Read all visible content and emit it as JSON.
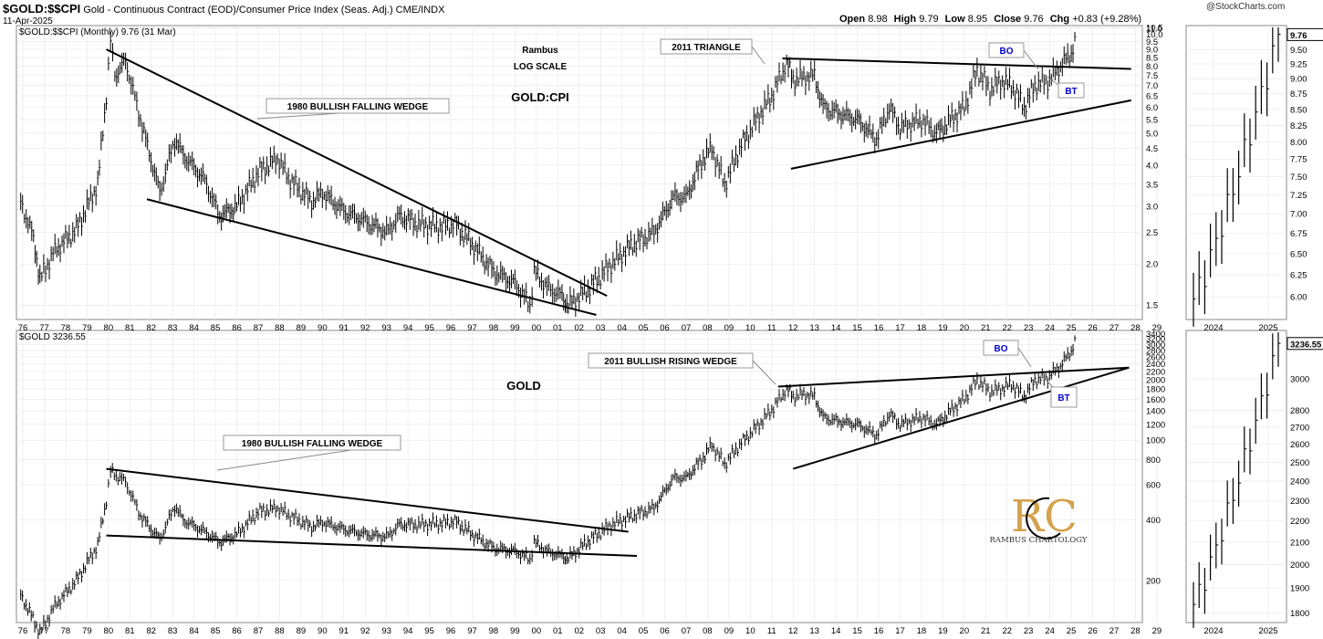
{
  "header": {
    "symbol": "$GOLD:$$CPI",
    "description": "Gold - Continuous Contract (EOD)/Consumer Price Index (Seas. Adj.) CME/INDX",
    "date": "11-Apr-2025",
    "open_label": "Open",
    "open": "8.98",
    "high_label": "High",
    "high": "9.79",
    "low_label": "Low",
    "low": "8.95",
    "close_label": "Close",
    "close": "9.76",
    "chg_label": "Chg",
    "chg": "+0.83 (+9.28%)",
    "provider": "@StockCharts.com"
  },
  "chart_data": [
    {
      "type": "ohlc",
      "panel": "top",
      "series_label": "$GOLD:$$CPI (Monthly) 9.76 (31 Mar)",
      "scale": "log",
      "ylim": [
        1.4,
        10.5
      ],
      "y_ticks": [
        "1.5",
        "2.0",
        "2.5",
        "3.0",
        "3.5",
        "4.0",
        "4.5",
        "5.0",
        "5.5",
        "6.0",
        "6.5",
        "7.0",
        "7.5",
        "8.0",
        "8.5",
        "9.0",
        "9.5",
        "10.0",
        "10.5",
        "11.0"
      ],
      "x_ticks": [
        "76",
        "77",
        "78",
        "79",
        "80",
        "81",
        "82",
        "83",
        "84",
        "85",
        "86",
        "87",
        "88",
        "89",
        "90",
        "91",
        "92",
        "93",
        "94",
        "95",
        "96",
        "97",
        "98",
        "99",
        "00",
        "01",
        "02",
        "03",
        "04",
        "05",
        "06",
        "07",
        "08",
        "09",
        "10",
        "11",
        "12",
        "13",
        "14",
        "15",
        "16",
        "17",
        "18",
        "19",
        "20",
        "21",
        "22",
        "23",
        "24",
        "25",
        "26",
        "27",
        "28",
        "29"
      ],
      "series_points": [
        [
          1975.9,
          3.1
        ],
        [
          1976.5,
          2.4
        ],
        [
          1976.8,
          1.8
        ],
        [
          1977.5,
          2.2
        ],
        [
          1978.5,
          2.55
        ],
        [
          1979.5,
          3.5
        ],
        [
          1979.9,
          6.5
        ],
        [
          1980.1,
          9.6
        ],
        [
          1980.3,
          7.5
        ],
        [
          1980.8,
          8.3
        ],
        [
          1981.5,
          5.5
        ],
        [
          1982.4,
          3.3
        ],
        [
          1983.1,
          4.8
        ],
        [
          1983.5,
          4.3
        ],
        [
          1984.5,
          3.6
        ],
        [
          1985.2,
          2.8
        ],
        [
          1986.0,
          3.0
        ],
        [
          1987.0,
          3.8
        ],
        [
          1987.9,
          4.2
        ],
        [
          1988.5,
          3.6
        ],
        [
          1989.5,
          3.1
        ],
        [
          1990.0,
          3.3
        ],
        [
          1991.0,
          2.9
        ],
        [
          1992.0,
          2.7
        ],
        [
          1993.0,
          2.5
        ],
        [
          1993.6,
          2.8
        ],
        [
          1994.5,
          2.65
        ],
        [
          1995.5,
          2.6
        ],
        [
          1996.2,
          2.65
        ],
        [
          1997.0,
          2.3
        ],
        [
          1998.0,
          1.9
        ],
        [
          1999.0,
          1.75
        ],
        [
          1999.7,
          1.5
        ],
        [
          1999.9,
          1.9
        ],
        [
          2000.5,
          1.7
        ],
        [
          2001.2,
          1.6
        ],
        [
          2001.5,
          1.5
        ],
        [
          2002.5,
          1.7
        ],
        [
          2003.5,
          2.0
        ],
        [
          2004.5,
          2.3
        ],
        [
          2005.5,
          2.5
        ],
        [
          2006.4,
          3.2
        ],
        [
          2007.0,
          3.2
        ],
        [
          2007.8,
          4.2
        ],
        [
          2008.2,
          4.5
        ],
        [
          2008.8,
          3.5
        ],
        [
          2009.5,
          4.5
        ],
        [
          2010.5,
          5.8
        ],
        [
          2011.0,
          6.5
        ],
        [
          2011.7,
          8.2
        ],
        [
          2012.0,
          7.3
        ],
        [
          2012.5,
          7.4
        ],
        [
          2013.0,
          7.5
        ],
        [
          2013.4,
          6.0
        ],
        [
          2014.0,
          5.8
        ],
        [
          2015.0,
          5.5
        ],
        [
          2015.9,
          4.8
        ],
        [
          2016.5,
          6.0
        ],
        [
          2017.0,
          5.2
        ],
        [
          2018.0,
          5.5
        ],
        [
          2018.7,
          5.0
        ],
        [
          2019.5,
          5.6
        ],
        [
          2020.0,
          6.0
        ],
        [
          2020.6,
          7.8
        ],
        [
          2021.2,
          6.8
        ],
        [
          2021.7,
          7.2
        ],
        [
          2022.2,
          7.0
        ],
        [
          2022.8,
          6.0
        ],
        [
          2023.3,
          7.0
        ],
        [
          2023.9,
          7.2
        ],
        [
          2024.5,
          8.0
        ],
        [
          2025.0,
          8.8
        ],
        [
          2025.25,
          9.76
        ]
      ],
      "annotations": [
        "Rambus",
        "LOG SCALE",
        "GOLD:CPI",
        "1980 BULLISH FALLING WEDGE",
        "2011 TRIANGLE",
        "BO",
        "BT"
      ],
      "trendlines": [
        {
          "from": [
            1979.9,
            9.0
          ],
          "to": [
            2003.3,
            1.6
          ]
        },
        {
          "from": [
            1981.8,
            3.15
          ],
          "to": [
            2002.8,
            1.4
          ]
        },
        {
          "from": [
            2011.5,
            8.45
          ],
          "to": [
            2027.8,
            7.85
          ]
        },
        {
          "from": [
            2011.9,
            3.9
          ],
          "to": [
            2027.8,
            6.3
          ]
        }
      ]
    },
    {
      "type": "ohlc",
      "panel": "top-inset",
      "scale": "log",
      "ylim": [
        5.8,
        9.9
      ],
      "y_ticks": [
        "6.00",
        "6.25",
        "6.50",
        "6.75",
        "7.00",
        "7.25",
        "7.50",
        "7.75",
        "8.00",
        "8.25",
        "8.50",
        "8.75",
        "9.00",
        "9.25",
        "9.50"
      ],
      "x_ticks": [
        "2024",
        "2025"
      ],
      "last_value": "9.76"
    },
    {
      "type": "ohlc",
      "panel": "bottom",
      "series_label": "$GOLD 3236.55",
      "scale": "log",
      "ylim": [
        130,
        3450
      ],
      "y_ticks": [
        "200",
        "400",
        "600",
        "800",
        "1000",
        "1200",
        "1400",
        "1600",
        "1800",
        "2000",
        "2200",
        "2400",
        "2600",
        "2800",
        "3000",
        "3200",
        "3400"
      ],
      "x_ticks": [
        "76",
        "77",
        "78",
        "79",
        "80",
        "81",
        "82",
        "83",
        "84",
        "85",
        "86",
        "87",
        "88",
        "89",
        "90",
        "91",
        "92",
        "93",
        "94",
        "95",
        "96",
        "97",
        "98",
        "99",
        "00",
        "01",
        "02",
        "03",
        "04",
        "05",
        "06",
        "07",
        "08",
        "09",
        "10",
        "11",
        "12",
        "13",
        "14",
        "15",
        "16",
        "17",
        "18",
        "19",
        "20",
        "21",
        "22",
        "23",
        "24",
        "25",
        "26",
        "27",
        "28",
        "29"
      ],
      "series_points": [
        [
          1975.9,
          170
        ],
        [
          1976.8,
          110
        ],
        [
          1977.5,
          150
        ],
        [
          1978.5,
          200
        ],
        [
          1979.5,
          300
        ],
        [
          1979.9,
          500
        ],
        [
          1980.1,
          700
        ],
        [
          1980.8,
          620
        ],
        [
          1981.5,
          420
        ],
        [
          1982.4,
          320
        ],
        [
          1983.1,
          470
        ],
        [
          1983.5,
          400
        ],
        [
          1984.5,
          350
        ],
        [
          1985.2,
          310
        ],
        [
          1986.0,
          340
        ],
        [
          1987.0,
          440
        ],
        [
          1987.9,
          460
        ],
        [
          1988.5,
          420
        ],
        [
          1989.5,
          370
        ],
        [
          1990.0,
          390
        ],
        [
          1991.0,
          360
        ],
        [
          1992.0,
          340
        ],
        [
          1993.0,
          330
        ],
        [
          1993.6,
          380
        ],
        [
          1994.5,
          380
        ],
        [
          1995.5,
          385
        ],
        [
          1996.2,
          395
        ],
        [
          1997.0,
          340
        ],
        [
          1998.0,
          290
        ],
        [
          1999.0,
          280
        ],
        [
          1999.7,
          255
        ],
        [
          1999.9,
          310
        ],
        [
          2000.5,
          280
        ],
        [
          2001.2,
          265
        ],
        [
          2001.5,
          258
        ],
        [
          2002.5,
          320
        ],
        [
          2003.5,
          380
        ],
        [
          2004.5,
          420
        ],
        [
          2005.5,
          460
        ],
        [
          2006.4,
          650
        ],
        [
          2007.0,
          650
        ],
        [
          2007.8,
          820
        ],
        [
          2008.2,
          950
        ],
        [
          2008.8,
          760
        ],
        [
          2009.5,
          950
        ],
        [
          2010.5,
          1230
        ],
        [
          2011.0,
          1420
        ],
        [
          2011.7,
          1800
        ],
        [
          2012.0,
          1650
        ],
        [
          2012.5,
          1700
        ],
        [
          2013.0,
          1650
        ],
        [
          2013.4,
          1300
        ],
        [
          2014.0,
          1250
        ],
        [
          2015.0,
          1200
        ],
        [
          2015.9,
          1060
        ],
        [
          2016.5,
          1350
        ],
        [
          2017.0,
          1200
        ],
        [
          2018.0,
          1300
        ],
        [
          2018.7,
          1200
        ],
        [
          2019.5,
          1450
        ],
        [
          2020.0,
          1600
        ],
        [
          2020.6,
          2000
        ],
        [
          2021.2,
          1750
        ],
        [
          2021.7,
          1800
        ],
        [
          2022.2,
          1900
        ],
        [
          2022.8,
          1650
        ],
        [
          2023.3,
          2000
        ],
        [
          2023.9,
          2050
        ],
        [
          2024.5,
          2350
        ],
        [
          2025.0,
          2800
        ],
        [
          2025.25,
          3236.55
        ]
      ],
      "annotations": [
        "GOLD",
        "1980 BULLISH FALLING WEDGE",
        "2011 BULLISH RISING WEDGE",
        "BO",
        "BT"
      ],
      "trendlines": [
        {
          "from": [
            1979.9,
            720
          ],
          "to": [
            2004.3,
            350
          ]
        },
        {
          "from": [
            1979.9,
            335
          ],
          "to": [
            2004.7,
            265
          ]
        },
        {
          "from": [
            2011.3,
            1850
          ],
          "to": [
            2027.7,
            2300
          ]
        },
        {
          "from": [
            2012.0,
            720
          ],
          "to": [
            2027.7,
            2300
          ]
        }
      ]
    },
    {
      "type": "ohlc",
      "panel": "bottom-inset",
      "scale": "log",
      "ylim": [
        1780,
        3320
      ],
      "y_ticks": [
        "1800",
        "1900",
        "2000",
        "2100",
        "2200",
        "2300",
        "2400",
        "2500",
        "2600",
        "2700",
        "2800",
        "3000"
      ],
      "x_ticks": [
        "2024",
        "2025"
      ],
      "last_value": "3236.55"
    }
  ],
  "watermark": {
    "initials": "RC",
    "text": "RAMBUS CHARTOLOGY",
    "color": "#d4a24c"
  },
  "colors": {
    "line": "#000000",
    "grid": "#e6e6e6",
    "annotation_blue": "#0000cc"
  }
}
